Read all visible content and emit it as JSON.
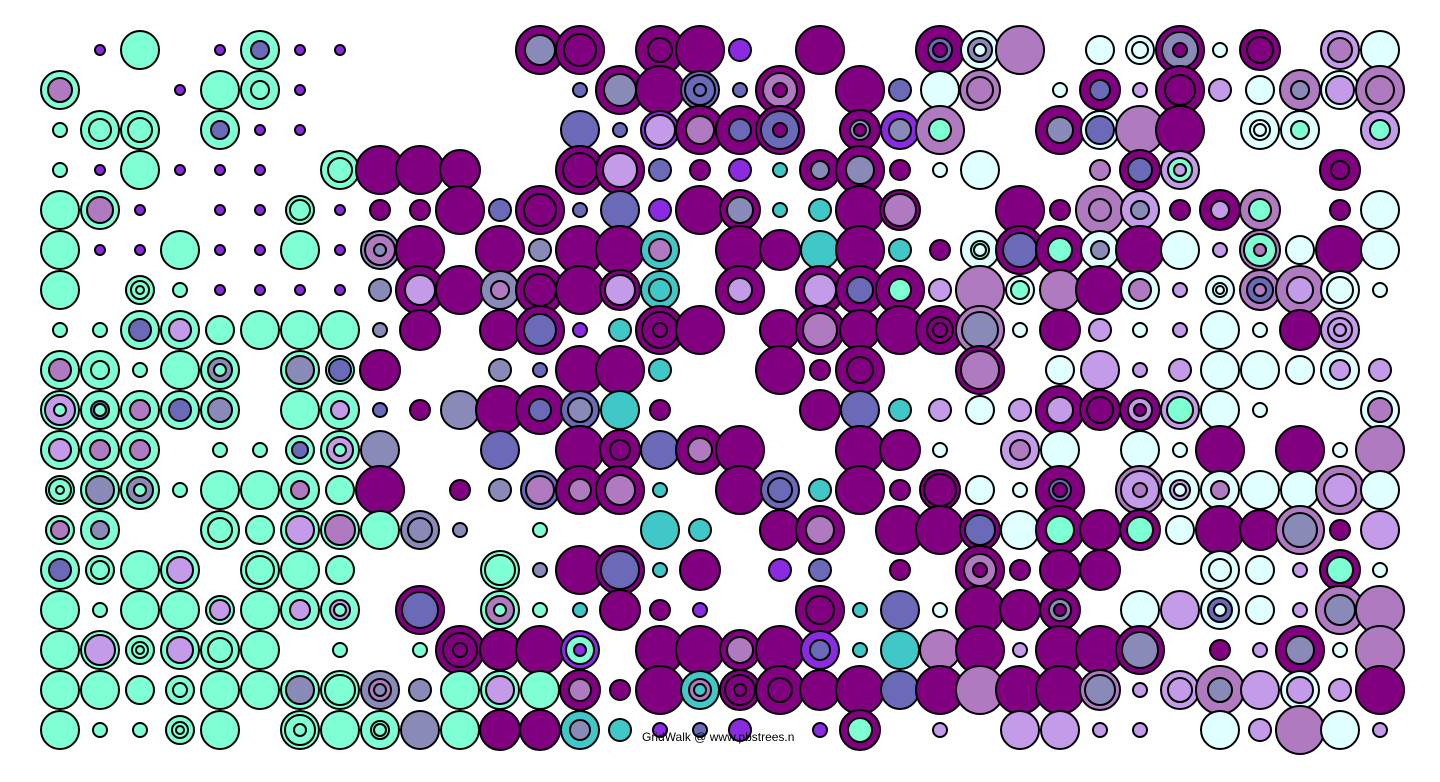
{
  "credit": "GridWalk @ www.pbstrees.n",
  "palette": {
    "aqua": "#7fffd4",
    "cyan": "#40c8c8",
    "slate": "#6a6ab8",
    "violet": "#8a2be2",
    "purple": "#800080",
    "orchid": "#b07ac0",
    "lavender": "#c39be8",
    "lightcyan": "#e0ffff",
    "steel": "#8a8ab8",
    "stroke": "#000000",
    "background": "#ffffff"
  },
  "grid": {
    "rows": [
      "_______________________________________",
      "_______________________________________",
      "_______________________________________",
      "_______________________________________",
      "_______________________________________",
      "_______________________________________",
      "_______________________________________",
      "_______________________________________",
      "_______________________________________",
      "_______________________________________",
      "_______________________________________",
      "_______________________________________",
      "_______________________________________",
      "_______________________________________",
      "_______________________________________",
      "_______________________________________",
      "_______________________________________",
      "_______________________________________"
    ]
  }
}
